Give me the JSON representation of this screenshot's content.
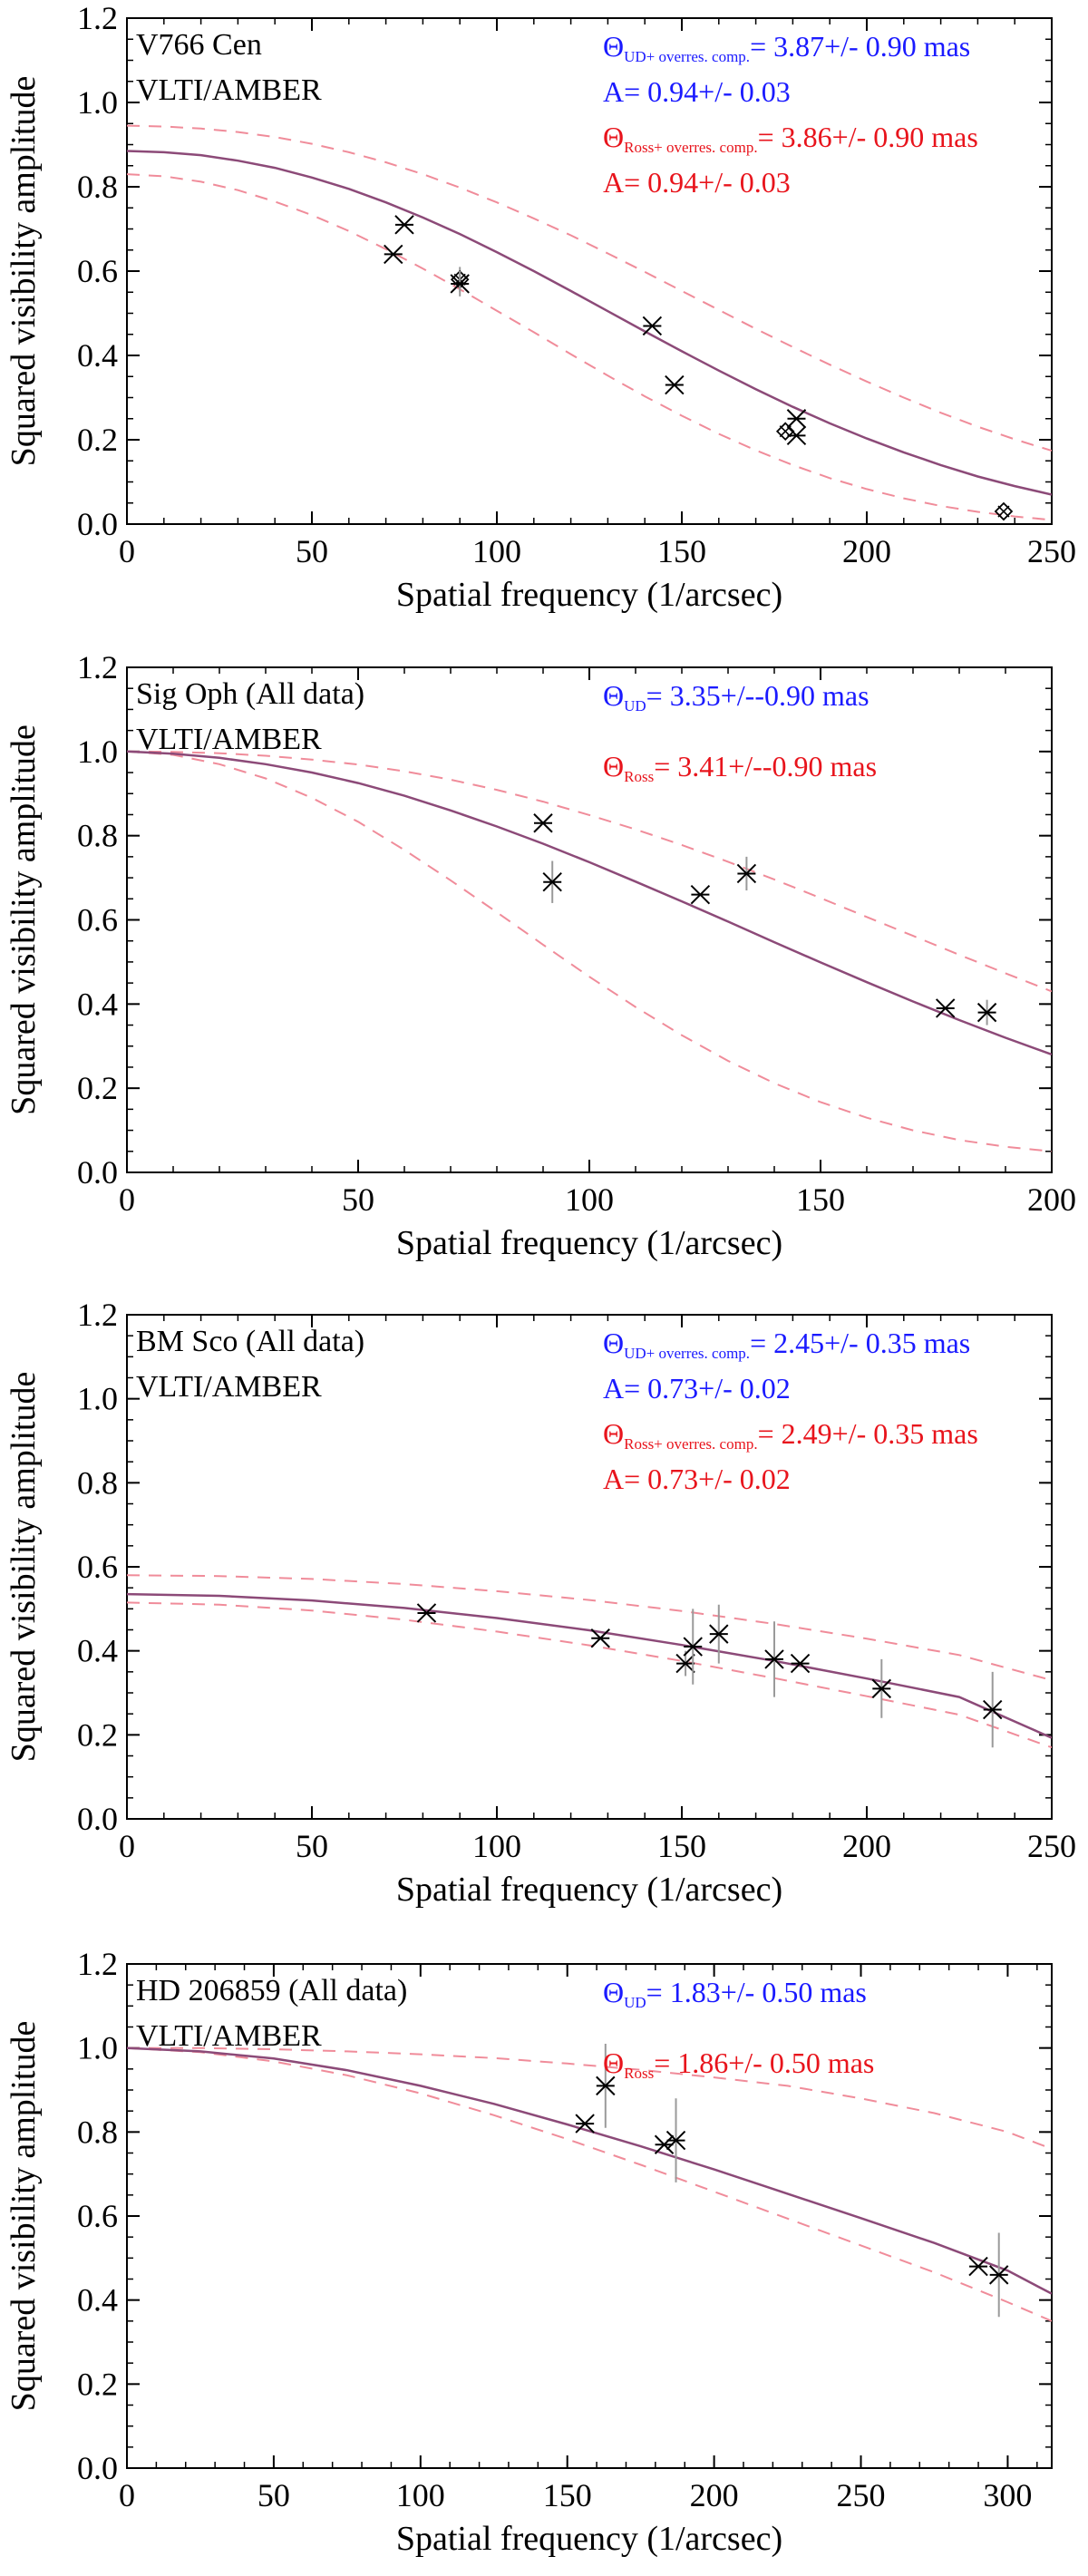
{
  "colors": {
    "model_line": "#8c4a78",
    "bound_line": "#f08c9a",
    "blue_text": "#1a1aff",
    "red_text": "#e8141c",
    "marker": "#000000",
    "error_bar": "#9a9a9a"
  },
  "chart_data": [
    {
      "type": "scatter",
      "title_lines": [
        "V766 Cen",
        "VLTI/AMBER"
      ],
      "xlabel": "Spatial frequency (1/arcsec)",
      "ylabel": "Squared visibility amplitude",
      "xlim": [
        0,
        250
      ],
      "ylim": [
        0,
        1.2
      ],
      "xticks": [
        0,
        50,
        100,
        150,
        200,
        250
      ],
      "yticks": [
        0.0,
        0.2,
        0.4,
        0.6,
        0.8,
        1.0,
        1.2
      ],
      "annotations": [
        {
          "color": "blue",
          "symbol": "Θ",
          "subscript": "UD+ overres. comp.",
          "text": "= 3.87+/- 0.90 mas"
        },
        {
          "color": "blue",
          "symbol": "",
          "subscript": "",
          "text": "A= 0.94+/- 0.03"
        },
        {
          "color": "red",
          "symbol": "Θ",
          "subscript": "Ross+ overres. comp.",
          "text": "= 3.86+/- 0.90 mas"
        },
        {
          "color": "red",
          "symbol": "",
          "subscript": "",
          "text": "A= 0.94+/- 0.03"
        }
      ],
      "model": {
        "x": [
          0,
          10,
          20,
          30,
          40,
          50,
          60,
          70,
          80,
          90,
          100,
          110,
          120,
          130,
          140,
          150,
          160,
          170,
          180,
          190,
          200,
          210,
          220,
          230,
          240,
          250
        ],
        "fit": [
          0.885,
          0.882,
          0.875,
          0.862,
          0.845,
          0.822,
          0.795,
          0.763,
          0.727,
          0.688,
          0.645,
          0.6,
          0.553,
          0.505,
          0.457,
          0.41,
          0.364,
          0.32,
          0.278,
          0.239,
          0.203,
          0.17,
          0.14,
          0.113,
          0.09,
          0.07
        ],
        "upper": [
          0.945,
          0.943,
          0.938,
          0.93,
          0.918,
          0.902,
          0.882,
          0.858,
          0.83,
          0.798,
          0.763,
          0.725,
          0.685,
          0.642,
          0.598,
          0.553,
          0.508,
          0.463,
          0.42,
          0.378,
          0.338,
          0.3,
          0.264,
          0.231,
          0.201,
          0.174
        ],
        "lower": [
          0.83,
          0.825,
          0.812,
          0.792,
          0.765,
          0.733,
          0.695,
          0.652,
          0.606,
          0.557,
          0.506,
          0.455,
          0.403,
          0.352,
          0.303,
          0.257,
          0.214,
          0.175,
          0.14,
          0.109,
          0.083,
          0.061,
          0.043,
          0.029,
          0.018,
          0.01
        ]
      },
      "points": [
        {
          "x": 72,
          "y": 0.64,
          "err": 0.0,
          "marker": "star"
        },
        {
          "x": 75,
          "y": 0.71,
          "err": 0.0,
          "marker": "star"
        },
        {
          "x": 90,
          "y": 0.58,
          "err": 0.03,
          "marker": "diamond"
        },
        {
          "x": 90,
          "y": 0.57,
          "err": 0.03,
          "marker": "star"
        },
        {
          "x": 142,
          "y": 0.47,
          "err": 0.0,
          "marker": "star"
        },
        {
          "x": 148,
          "y": 0.33,
          "err": 0.0,
          "marker": "star"
        },
        {
          "x": 178,
          "y": 0.22,
          "err": 0.0,
          "marker": "diamond"
        },
        {
          "x": 181,
          "y": 0.25,
          "err": 0.0,
          "marker": "star"
        },
        {
          "x": 181,
          "y": 0.21,
          "err": 0.0,
          "marker": "star"
        },
        {
          "x": 237,
          "y": 0.03,
          "err": 0.0,
          "marker": "diamond"
        }
      ]
    },
    {
      "type": "scatter",
      "title_lines": [
        "Sig Oph (All data)",
        "VLTI/AMBER"
      ],
      "xlabel": "Spatial frequency (1/arcsec)",
      "ylabel": "Squared visibility amplitude",
      "xlim": [
        0,
        200
      ],
      "ylim": [
        0,
        1.2
      ],
      "xticks": [
        0,
        50,
        100,
        150,
        200
      ],
      "yticks": [
        0.0,
        0.2,
        0.4,
        0.6,
        0.8,
        1.0,
        1.2
      ],
      "annotations": [
        {
          "color": "blue",
          "symbol": "Θ",
          "subscript": "UD",
          "text": "= 3.35+/--0.90 mas"
        },
        {
          "color": "red",
          "symbol": "Θ",
          "subscript": "Ross",
          "text": "= 3.41+/--0.90 mas"
        }
      ],
      "model": {
        "x": [
          0,
          10,
          20,
          30,
          40,
          50,
          60,
          70,
          80,
          90,
          100,
          110,
          120,
          130,
          140,
          150,
          160,
          170,
          180,
          190,
          200
        ],
        "fit": [
          1.0,
          0.995,
          0.985,
          0.97,
          0.95,
          0.925,
          0.895,
          0.86,
          0.822,
          0.781,
          0.737,
          0.691,
          0.644,
          0.596,
          0.547,
          0.499,
          0.452,
          0.406,
          0.362,
          0.32,
          0.28
        ],
        "upper": [
          1.0,
          0.999,
          0.996,
          0.99,
          0.981,
          0.969,
          0.953,
          0.933,
          0.909,
          0.881,
          0.849,
          0.815,
          0.778,
          0.738,
          0.696,
          0.652,
          0.607,
          0.562,
          0.517,
          0.473,
          0.43
        ],
        "lower": [
          1.0,
          0.992,
          0.97,
          0.936,
          0.89,
          0.833,
          0.766,
          0.694,
          0.618,
          0.541,
          0.465,
          0.393,
          0.326,
          0.265,
          0.212,
          0.167,
          0.13,
          0.1,
          0.077,
          0.061,
          0.05
        ]
      },
      "points": [
        {
          "x": 90,
          "y": 0.83,
          "err": 0.0,
          "marker": "star"
        },
        {
          "x": 92,
          "y": 0.69,
          "err": 0.05,
          "marker": "star"
        },
        {
          "x": 124,
          "y": 0.66,
          "err": 0.0,
          "marker": "star"
        },
        {
          "x": 134,
          "y": 0.71,
          "err": 0.04,
          "marker": "star"
        },
        {
          "x": 177,
          "y": 0.39,
          "err": 0.0,
          "marker": "star"
        },
        {
          "x": 186,
          "y": 0.38,
          "err": 0.03,
          "marker": "star"
        }
      ]
    },
    {
      "type": "scatter",
      "title_lines": [
        "BM Sco (All data)",
        "VLTI/AMBER"
      ],
      "xlabel": "Spatial frequency (1/arcsec)",
      "ylabel": "Squared visibility amplitude",
      "xlim": [
        0,
        250
      ],
      "ylim": [
        0,
        1.2
      ],
      "xticks": [
        0,
        50,
        100,
        150,
        200,
        250
      ],
      "yticks": [
        0.0,
        0.2,
        0.4,
        0.6,
        0.8,
        1.0,
        1.2
      ],
      "annotations": [
        {
          "color": "blue",
          "symbol": "Θ",
          "subscript": "UD+ overres. comp.",
          "text": "= 2.45+/- 0.35 mas"
        },
        {
          "color": "blue",
          "symbol": "",
          "subscript": "",
          "text": "A= 0.73+/- 0.02"
        },
        {
          "color": "red",
          "symbol": "Θ",
          "subscript": "Ross+ overres. comp.",
          "text": "= 2.49+/- 0.35 mas"
        },
        {
          "color": "red",
          "symbol": "",
          "subscript": "",
          "text": "A= 0.73+/- 0.02"
        }
      ],
      "model": {
        "x": [
          0,
          25,
          50,
          75,
          100,
          125,
          150,
          175,
          200,
          225,
          250
        ],
        "fit": [
          0.535,
          0.531,
          0.52,
          0.502,
          0.478,
          0.449,
          0.414,
          0.376,
          0.334,
          0.29,
          0.193
        ],
        "upper": [
          0.58,
          0.578,
          0.571,
          0.559,
          0.542,
          0.521,
          0.495,
          0.464,
          0.429,
          0.39,
          0.33
        ],
        "lower": [
          0.515,
          0.51,
          0.496,
          0.474,
          0.446,
          0.413,
          0.376,
          0.335,
          0.292,
          0.248,
          0.17
        ]
      },
      "points": [
        {
          "x": 81,
          "y": 0.49,
          "err": 0.0,
          "marker": "star"
        },
        {
          "x": 128,
          "y": 0.43,
          "err": 0.0,
          "marker": "star"
        },
        {
          "x": 151,
          "y": 0.37,
          "err": 0.03,
          "marker": "star"
        },
        {
          "x": 153,
          "y": 0.41,
          "err": 0.09,
          "marker": "star"
        },
        {
          "x": 160,
          "y": 0.44,
          "err": 0.07,
          "marker": "star"
        },
        {
          "x": 175,
          "y": 0.38,
          "err": 0.09,
          "marker": "star"
        },
        {
          "x": 182,
          "y": 0.37,
          "err": 0.0,
          "marker": "star"
        },
        {
          "x": 204,
          "y": 0.31,
          "err": 0.07,
          "marker": "star"
        },
        {
          "x": 234,
          "y": 0.26,
          "err": 0.09,
          "marker": "star"
        }
      ]
    },
    {
      "type": "scatter",
      "title_lines": [
        "HD 206859 (All data)",
        "VLTI/AMBER"
      ],
      "xlabel": "Spatial frequency (1/arcsec)",
      "ylabel": "Squared visibility amplitude",
      "xlim": [
        0,
        315
      ],
      "ylim": [
        0,
        1.2
      ],
      "xticks": [
        0,
        50,
        100,
        150,
        200,
        250,
        300
      ],
      "yticks": [
        0.0,
        0.2,
        0.4,
        0.6,
        0.8,
        1.0,
        1.2
      ],
      "annotations": [
        {
          "color": "blue",
          "symbol": "Θ",
          "subscript": "UD",
          "text": "= 1.83+/- 0.50 mas"
        },
        {
          "color": "red",
          "symbol": "Θ",
          "subscript": "Ross",
          "text": "= 1.86+/- 0.50 mas"
        }
      ],
      "model": {
        "x": [
          0,
          25,
          50,
          75,
          100,
          125,
          150,
          175,
          200,
          225,
          250,
          275,
          300,
          315
        ],
        "fit": [
          1.0,
          0.992,
          0.975,
          0.947,
          0.91,
          0.867,
          0.818,
          0.766,
          0.711,
          0.653,
          0.595,
          0.536,
          0.47,
          0.415
        ],
        "upper": [
          1.0,
          1.0,
          0.997,
          0.992,
          0.985,
          0.976,
          0.963,
          0.948,
          0.93,
          0.91,
          0.88,
          0.845,
          0.8,
          0.76
        ],
        "lower": [
          1.0,
          0.99,
          0.968,
          0.935,
          0.892,
          0.84,
          0.783,
          0.722,
          0.658,
          0.594,
          0.53,
          0.466,
          0.395,
          0.35
        ]
      },
      "points": [
        {
          "x": 156,
          "y": 0.82,
          "err": 0.0,
          "marker": "star"
        },
        {
          "x": 163,
          "y": 0.91,
          "err": 0.1,
          "marker": "star"
        },
        {
          "x": 183,
          "y": 0.77,
          "err": 0.0,
          "marker": "star"
        },
        {
          "x": 187,
          "y": 0.78,
          "err": 0.1,
          "marker": "star"
        },
        {
          "x": 290,
          "y": 0.48,
          "err": 0.0,
          "marker": "star"
        },
        {
          "x": 297,
          "y": 0.46,
          "err": 0.1,
          "marker": "star"
        }
      ]
    }
  ]
}
